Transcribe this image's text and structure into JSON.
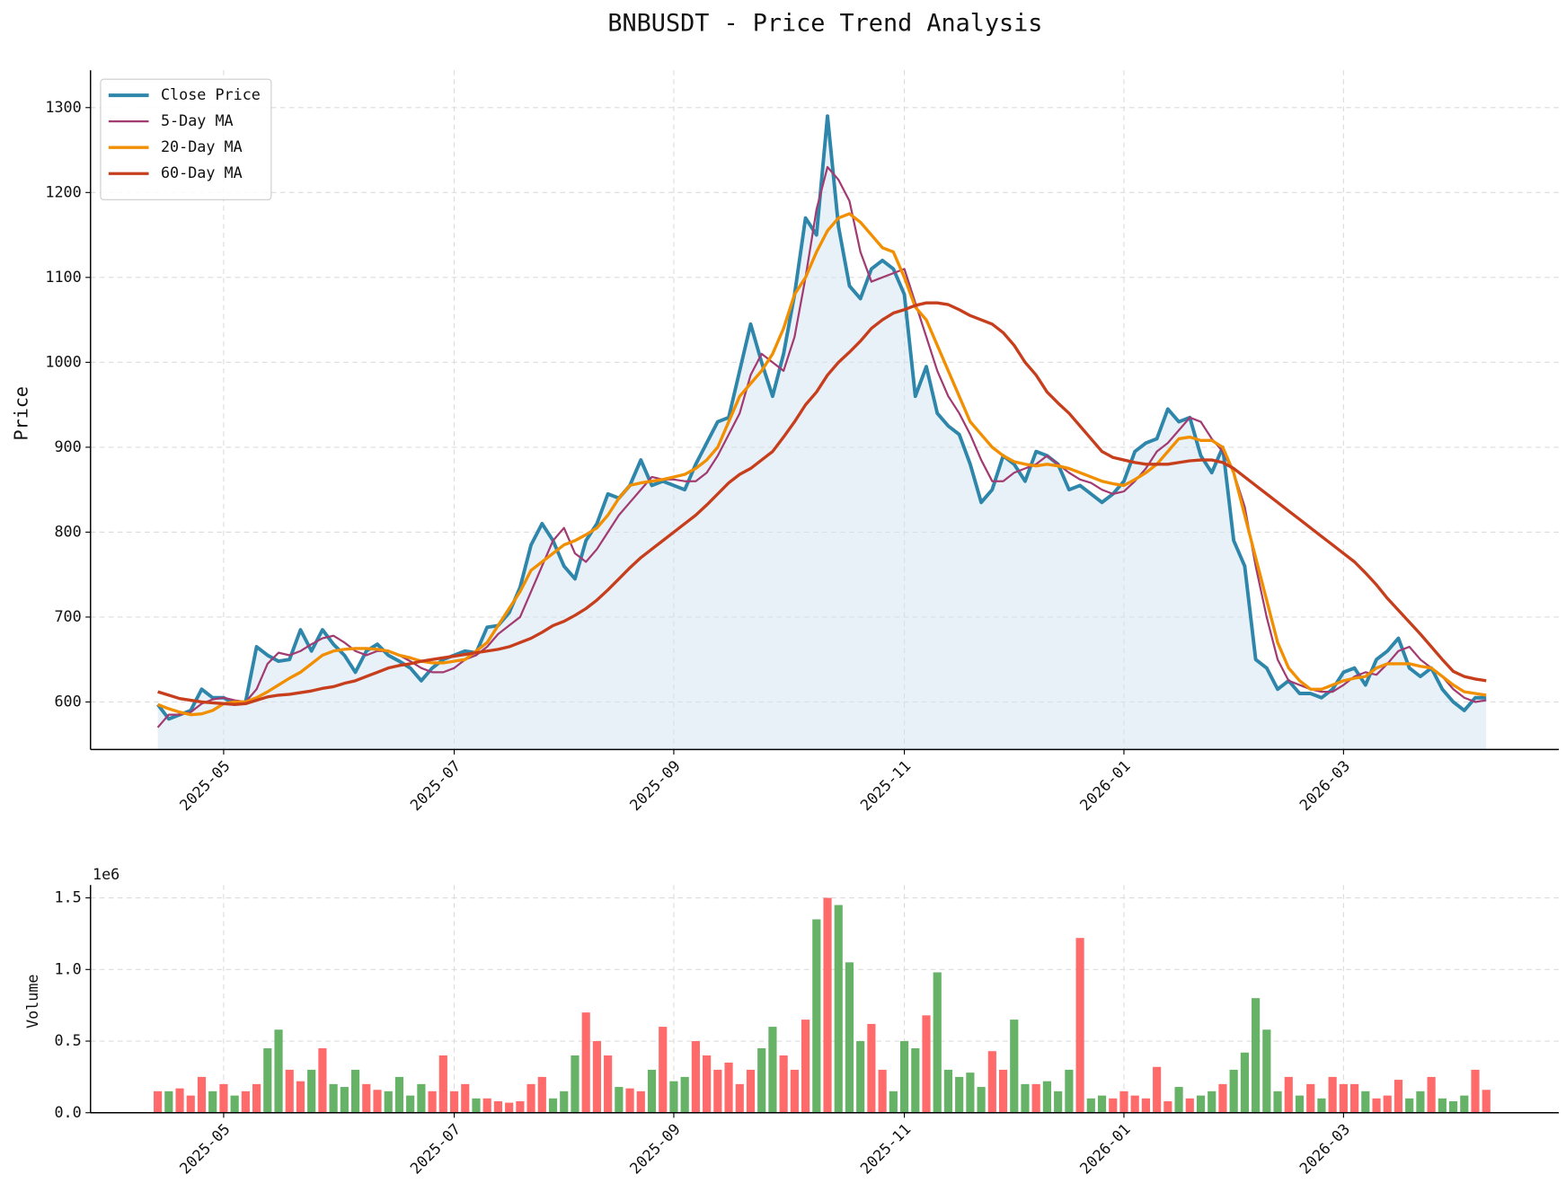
{
  "chart_data": [
    {
      "type": "line",
      "title": "BNBUSDT - Price Trend Analysis",
      "y_label": "Price",
      "categories": [
        null,
        null,
        null,
        null,
        null,
        null,
        "2025-05",
        null,
        null,
        null,
        null,
        null,
        null,
        null,
        null,
        null,
        null,
        null,
        null,
        null,
        null,
        null,
        null,
        null,
        null,
        null,
        null,
        "2025-07",
        null,
        null,
        null,
        null,
        null,
        null,
        null,
        null,
        null,
        null,
        null,
        null,
        null,
        null,
        null,
        null,
        null,
        null,
        null,
        "2025-09",
        null,
        null,
        null,
        null,
        null,
        null,
        null,
        null,
        null,
        null,
        null,
        null,
        null,
        null,
        null,
        null,
        null,
        null,
        null,
        null,
        "2025-11",
        null,
        null,
        null,
        null,
        null,
        null,
        null,
        null,
        null,
        null,
        null,
        null,
        null,
        null,
        null,
        null,
        null,
        null,
        null,
        "2026-01",
        null,
        null,
        null,
        null,
        null,
        null,
        null,
        null,
        null,
        null,
        null,
        null,
        null,
        null,
        null,
        null,
        null,
        null,
        null,
        "2026-03",
        null,
        null,
        null,
        null,
        null,
        null,
        null,
        null,
        null,
        null,
        null,
        null,
        null
      ],
      "series": [
        {
          "name": "Close Price",
          "color": "#2e86ab",
          "width": 3.5,
          "values": [
            597,
            580,
            585,
            590,
            615,
            605,
            605,
            598,
            600,
            665,
            655,
            648,
            650,
            685,
            660,
            685,
            668,
            655,
            635,
            660,
            668,
            655,
            648,
            640,
            625,
            640,
            650,
            655,
            660,
            658,
            688,
            690,
            705,
            735,
            785,
            810,
            790,
            760,
            745,
            790,
            810,
            845,
            840,
            855,
            885,
            855,
            860,
            855,
            850,
            880,
            905,
            930,
            935,
            990,
            1045,
            1000,
            960,
            1010,
            1080,
            1170,
            1150,
            1290,
            1160,
            1090,
            1075,
            1110,
            1120,
            1110,
            1080,
            960,
            995,
            940,
            925,
            915,
            880,
            835,
            850,
            890,
            880,
            860,
            895,
            890,
            880,
            850,
            855,
            845,
            835,
            845,
            860,
            895,
            905,
            910,
            945,
            930,
            935,
            890,
            870,
            900,
            790,
            760,
            650,
            640,
            615,
            625,
            610,
            610,
            605,
            615,
            635,
            640,
            620,
            650,
            660,
            675,
            640,
            630,
            640,
            615,
            600,
            590,
            605,
            605
          ]
        },
        {
          "name": "5-Day MA",
          "color": "#a23b72",
          "width": 2,
          "values": [
            570,
            585,
            585,
            588,
            598,
            603,
            605,
            602,
            600,
            615,
            645,
            658,
            655,
            660,
            668,
            675,
            678,
            670,
            660,
            655,
            660,
            660,
            655,
            648,
            640,
            635,
            635,
            640,
            650,
            655,
            665,
            680,
            690,
            700,
            730,
            760,
            790,
            805,
            775,
            765,
            780,
            800,
            820,
            835,
            850,
            865,
            862,
            862,
            860,
            860,
            870,
            890,
            915,
            940,
            985,
            1010,
            1000,
            990,
            1030,
            1100,
            1180,
            1230,
            1215,
            1190,
            1130,
            1095,
            1100,
            1105,
            1110,
            1070,
            1030,
            990,
            960,
            940,
            915,
            885,
            860,
            860,
            870,
            875,
            880,
            890,
            880,
            870,
            862,
            858,
            850,
            845,
            848,
            860,
            875,
            895,
            905,
            920,
            935,
            930,
            910,
            895,
            870,
            830,
            760,
            700,
            650,
            625,
            620,
            615,
            612,
            612,
            620,
            630,
            635,
            632,
            645,
            660,
            665,
            650,
            640,
            630,
            615,
            605,
            600,
            602
          ]
        },
        {
          "name": "20-Day MA",
          "color": "#f18f01",
          "width": 3,
          "values": [
            597,
            592,
            588,
            585,
            586,
            590,
            598,
            600,
            600,
            605,
            612,
            620,
            628,
            635,
            645,
            655,
            660,
            662,
            663,
            663,
            662,
            660,
            655,
            652,
            648,
            646,
            646,
            648,
            650,
            660,
            670,
            690,
            710,
            730,
            755,
            765,
            775,
            785,
            790,
            797,
            805,
            820,
            840,
            855,
            858,
            860,
            862,
            865,
            868,
            875,
            885,
            900,
            930,
            960,
            975,
            990,
            1010,
            1040,
            1080,
            1100,
            1130,
            1155,
            1170,
            1175,
            1165,
            1150,
            1135,
            1130,
            1100,
            1065,
            1050,
            1020,
            990,
            960,
            930,
            915,
            900,
            890,
            883,
            880,
            878,
            880,
            878,
            875,
            870,
            865,
            860,
            857,
            855,
            862,
            870,
            880,
            895,
            910,
            912,
            908,
            908,
            900,
            870,
            820,
            770,
            720,
            670,
            640,
            625,
            615,
            615,
            620,
            625,
            628,
            630,
            640,
            645,
            645,
            645,
            642,
            640,
            630,
            620,
            612,
            610,
            608
          ]
        },
        {
          "name": "60-Day MA",
          "color": "#c73e1d",
          "width": 3,
          "values": [
            612,
            608,
            604,
            602,
            600,
            599,
            598,
            597,
            598,
            602,
            606,
            608,
            609,
            611,
            613,
            616,
            618,
            622,
            625,
            630,
            635,
            640,
            643,
            645,
            648,
            650,
            652,
            654,
            656,
            658,
            660,
            662,
            665,
            670,
            675,
            682,
            690,
            695,
            702,
            710,
            720,
            732,
            745,
            758,
            770,
            780,
            790,
            800,
            810,
            820,
            832,
            845,
            858,
            868,
            875,
            885,
            895,
            912,
            930,
            950,
            965,
            985,
            1000,
            1012,
            1025,
            1040,
            1050,
            1058,
            1062,
            1067,
            1070,
            1070,
            1068,
            1062,
            1055,
            1050,
            1045,
            1035,
            1020,
            1000,
            985,
            965,
            952,
            940,
            925,
            910,
            895,
            888,
            885,
            882,
            880,
            880,
            880,
            882,
            884,
            885,
            885,
            882,
            875,
            865,
            855,
            845,
            835,
            825,
            815,
            805,
            795,
            785,
            775,
            765,
            752,
            738,
            722,
            708,
            694,
            680,
            665,
            650,
            636,
            630,
            627,
            625
          ]
        }
      ],
      "area_fill": true,
      "area_color": "#d2e4ef",
      "ylim": [
        544,
        1344
      ],
      "yticks": [
        600,
        700,
        800,
        900,
        1000,
        1100,
        1200,
        1300
      ],
      "grid": true,
      "legend": "upper left"
    },
    {
      "type": "bar",
      "y_label": "Volume",
      "offset_label": "1e6",
      "categories": [
        null,
        null,
        null,
        null,
        null,
        null,
        "2025-05",
        null,
        null,
        null,
        null,
        null,
        null,
        null,
        null,
        null,
        null,
        null,
        null,
        null,
        null,
        null,
        null,
        null,
        null,
        null,
        null,
        "2025-07",
        null,
        null,
        null,
        null,
        null,
        null,
        null,
        null,
        null,
        null,
        null,
        null,
        null,
        null,
        null,
        null,
        null,
        null,
        null,
        "2025-09",
        null,
        null,
        null,
        null,
        null,
        null,
        null,
        null,
        null,
        null,
        null,
        null,
        null,
        null,
        null,
        null,
        null,
        null,
        null,
        null,
        "2025-11",
        null,
        null,
        null,
        null,
        null,
        null,
        null,
        null,
        null,
        null,
        null,
        null,
        null,
        null,
        null,
        null,
        null,
        null,
        null,
        "2026-01",
        null,
        null,
        null,
        null,
        null,
        null,
        null,
        null,
        null,
        null,
        null,
        null,
        null,
        null,
        null,
        null,
        null,
        null,
        null,
        "2026-03",
        null,
        null,
        null,
        null,
        null,
        null,
        null,
        null,
        null,
        null,
        null,
        null,
        null
      ],
      "values": [
        0.15,
        0.15,
        0.17,
        0.12,
        0.25,
        0.15,
        0.2,
        0.12,
        0.15,
        0.2,
        0.45,
        0.58,
        0.3,
        0.22,
        0.3,
        0.45,
        0.2,
        0.18,
        0.3,
        0.2,
        0.16,
        0.15,
        0.25,
        0.12,
        0.2,
        0.15,
        0.4,
        0.15,
        0.2,
        0.1,
        0.1,
        0.08,
        0.07,
        0.08,
        0.2,
        0.25,
        0.1,
        0.15,
        0.4,
        0.7,
        0.5,
        0.4,
        0.18,
        0.17,
        0.15,
        0.3,
        0.6,
        0.22,
        0.25,
        0.5,
        0.4,
        0.3,
        0.35,
        0.2,
        0.3,
        0.45,
        0.6,
        0.4,
        0.3,
        0.65,
        1.35,
        1.5,
        1.45,
        1.05,
        0.5,
        0.62,
        0.3,
        0.15,
        0.5,
        0.45,
        0.68,
        0.98,
        0.3,
        0.25,
        0.28,
        0.18,
        0.43,
        0.3,
        0.65,
        0.2,
        0.2,
        0.22,
        0.15,
        0.3,
        1.22,
        0.1,
        0.12,
        0.1,
        0.15,
        0.12,
        0.1,
        0.32,
        0.08,
        0.18,
        0.1,
        0.12,
        0.15,
        0.2,
        0.3,
        0.42,
        0.8,
        0.58,
        0.15,
        0.25,
        0.12,
        0.2,
        0.1,
        0.25,
        0.2,
        0.2,
        0.15,
        0.1,
        0.12,
        0.23,
        0.1,
        0.15,
        0.25,
        0.1,
        0.08,
        0.12,
        0.3,
        0.16
      ],
      "up_color": "#ff6b6b",
      "down_color": "#66b266",
      "ylim": [
        0,
        1.59
      ],
      "yticks": [
        {
          "value": 0,
          "label": "0.0"
        },
        0.5,
        {
          "value": 1,
          "label": "1.0"
        },
        1.5
      ],
      "grid": true
    }
  ]
}
